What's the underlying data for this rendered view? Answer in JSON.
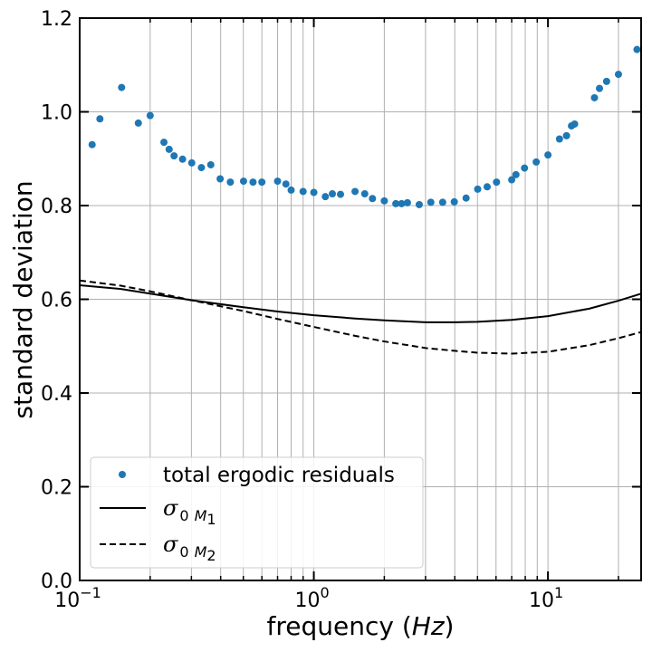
{
  "chart_data": {
    "type": "scatter",
    "title": "",
    "xlabel": {
      "prefix": "frequency (",
      "var": "Hz",
      "suffix": ")"
    },
    "ylabel": "standard deviation",
    "xscale": "log",
    "xlim": [
      0.1,
      25
    ],
    "ylim": [
      0,
      1.2
    ],
    "grid": true,
    "legend_position": "lower-left",
    "y_ticks": [
      {
        "value": 0.0,
        "label": "0.0"
      },
      {
        "value": 0.2,
        "label": "0.2"
      },
      {
        "value": 0.4,
        "label": "0.4"
      },
      {
        "value": 0.6,
        "label": "0.6"
      },
      {
        "value": 0.8,
        "label": "0.8"
      },
      {
        "value": 1.0,
        "label": "1.0"
      },
      {
        "value": 1.2,
        "label": "1.2"
      }
    ],
    "x_ticks": [
      {
        "value": 0.1,
        "base": "10",
        "exp": "−1"
      },
      {
        "value": 1,
        "base": "10",
        "exp": "0"
      },
      {
        "value": 10,
        "base": "10",
        "exp": "1"
      }
    ],
    "series": [
      {
        "name": "total ergodic residuals",
        "kind": "markers",
        "color": "#1f77b4",
        "x": [
          0.113,
          0.122,
          0.151,
          0.178,
          0.2,
          0.229,
          0.241,
          0.253,
          0.275,
          0.301,
          0.331,
          0.363,
          0.398,
          0.44,
          0.501,
          0.55,
          0.6,
          0.7,
          0.76,
          0.8,
          0.9,
          1.0,
          1.12,
          1.2,
          1.3,
          1.5,
          1.65,
          1.78,
          2.0,
          2.24,
          2.37,
          2.51,
          2.82,
          3.16,
          3.55,
          3.98,
          4.47,
          5.01,
          5.5,
          6.03,
          7.0,
          7.3,
          7.94,
          8.91,
          10.0,
          11.2,
          12.0,
          12.6,
          13.0,
          15.8,
          16.6,
          17.8,
          20.0,
          24.0
        ],
        "y": [
          0.93,
          0.985,
          1.052,
          0.976,
          0.992,
          0.935,
          0.92,
          0.906,
          0.899,
          0.891,
          0.881,
          0.887,
          0.857,
          0.85,
          0.852,
          0.85,
          0.85,
          0.852,
          0.846,
          0.833,
          0.83,
          0.828,
          0.819,
          0.825,
          0.824,
          0.83,
          0.825,
          0.815,
          0.81,
          0.804,
          0.804,
          0.806,
          0.802,
          0.807,
          0.807,
          0.808,
          0.816,
          0.835,
          0.84,
          0.85,
          0.855,
          0.866,
          0.88,
          0.893,
          0.908,
          0.942,
          0.949,
          0.97,
          0.974,
          1.03,
          1.05,
          1.065,
          1.08,
          1.133
        ]
      },
      {
        "name": "σ0 M1",
        "kind": "line",
        "dash": "solid",
        "color": "#000000",
        "x": [
          0.1,
          0.15,
          0.2,
          0.3,
          0.5,
          0.7,
          1.0,
          1.5,
          2.0,
          3.0,
          4.0,
          5.0,
          7.0,
          10.0,
          15.0,
          20.0,
          25.0
        ],
        "y": [
          0.63,
          0.622,
          0.612,
          0.598,
          0.583,
          0.574,
          0.566,
          0.559,
          0.555,
          0.551,
          0.551,
          0.552,
          0.556,
          0.564,
          0.58,
          0.597,
          0.612
        ]
      },
      {
        "name": "σ0 M2",
        "kind": "line",
        "dash": "dashed",
        "color": "#000000",
        "x": [
          0.1,
          0.15,
          0.2,
          0.3,
          0.5,
          0.7,
          1.0,
          1.5,
          2.0,
          3.0,
          4.0,
          5.0,
          7.0,
          10.0,
          15.0,
          20.0,
          25.0
        ],
        "y": [
          0.64,
          0.629,
          0.617,
          0.598,
          0.575,
          0.558,
          0.541,
          0.522,
          0.51,
          0.496,
          0.49,
          0.486,
          0.484,
          0.488,
          0.502,
          0.517,
          0.53
        ]
      }
    ],
    "legend": [
      {
        "label": "total ergodic residuals",
        "kind": "marker"
      },
      {
        "label": "σ",
        "sub_main": "0",
        "sub_var": "M",
        "sub_idx": "1",
        "kind": "solid"
      },
      {
        "label": "σ",
        "sub_main": "0",
        "sub_var": "M",
        "sub_idx": "2",
        "kind": "dashed"
      }
    ]
  }
}
